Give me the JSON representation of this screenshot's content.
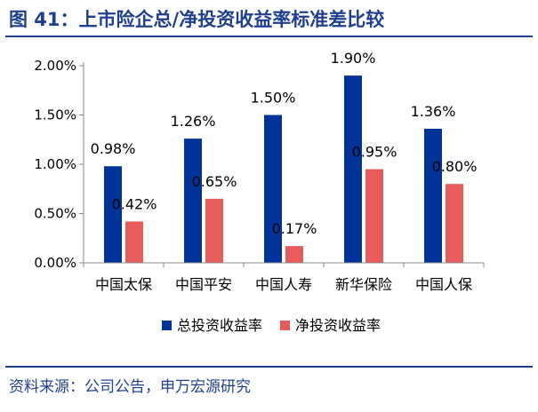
{
  "header": {
    "title": "图 41：上市险企总/净投资收益率标准差比较"
  },
  "footer": {
    "source": "资料来源：公司公告，申万宏源研究"
  },
  "colors": {
    "series_0": "#003399",
    "series_1": "#e85b5b",
    "title": "#1f3f8f"
  },
  "chart_data": {
    "type": "bar",
    "categories": [
      "中国太保",
      "中国平安",
      "中国人寿",
      "新华保险",
      "中国人保"
    ],
    "series": [
      {
        "name": "总投资收益率",
        "values": [
          0.98,
          1.26,
          1.5,
          1.9,
          1.36
        ],
        "labels": [
          "0.98%",
          "1.26%",
          "1.50%",
          "1.90%",
          "1.36%"
        ]
      },
      {
        "name": "净投资收益率",
        "values": [
          0.42,
          0.65,
          0.17,
          0.95,
          0.8
        ],
        "labels": [
          "0.42%",
          "0.65%",
          "0.17%",
          "0.95%",
          "0.80%"
        ]
      }
    ],
    "ylim": [
      0,
      2.0
    ],
    "yticks": [
      "0.00%",
      "0.50%",
      "1.00%",
      "1.50%",
      "2.00%"
    ],
    "ytick_values": [
      0,
      0.5,
      1.0,
      1.5,
      2.0
    ],
    "grid": false,
    "legend": "bottom"
  }
}
